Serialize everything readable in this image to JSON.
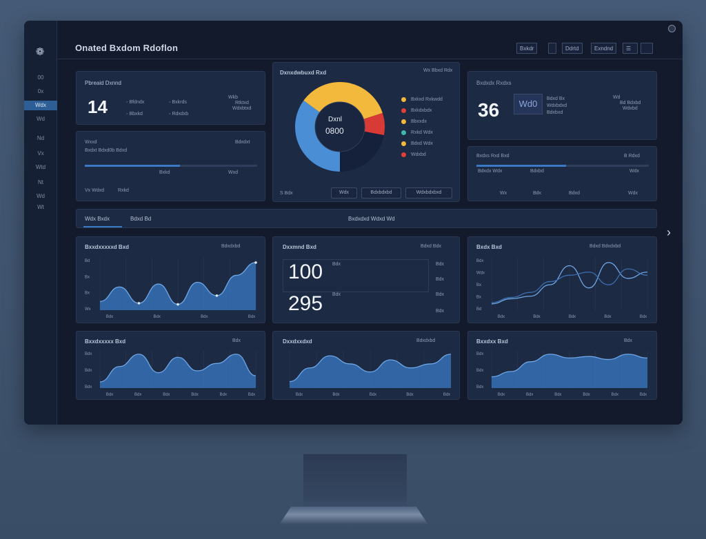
{
  "window": {
    "title": "Onated Bxdom Rdoflon"
  },
  "toolbar": {
    "buttons": [
      "Bxkdr",
      "Ddrtd",
      "Exndnd",
      "☰"
    ]
  },
  "sidebar": {
    "logo": "❁",
    "items": [
      "00",
      "0x",
      "Wdx",
      "Wd",
      "Nd",
      "Vx",
      "Wtd",
      "Nt",
      "Wd",
      "Wt"
    ]
  },
  "kpi_left": {
    "title": "Pbreaid Dxnnd",
    "value": "14",
    "rows": [
      {
        "a": "Bfdndx",
        "b": "Bxkrds"
      },
      {
        "a": "Bbxkd",
        "b": "Rdxdxb"
      }
    ],
    "right_labels": [
      "Wkb",
      "Rtktxd",
      "Wdxbtxd"
    ]
  },
  "progress_left": {
    "title": "Wxxd",
    "right": "Bdxdxt",
    "ticks": [
      "Bxdxt Bdxd0b Bdxd",
      "Bxkd",
      "Wxd"
    ],
    "bottom": [
      "Vx Wdxd",
      "Rxkd",
      "Bdx"
    ]
  },
  "donut": {
    "title": "Dxnxdwbuxd Rxd",
    "subtitle": "Wx Bbxd Rdx",
    "center_label": "Dxnl",
    "center_value": "0800",
    "legend": [
      "Bxkxd Rxkwdd",
      "Bxkdxbdx",
      "Bbxxdx",
      "Rxkd Wdx",
      "Bdxd Wdx",
      "Wdxbd"
    ],
    "legend_colors": [
      "#f2b93d",
      "#e0403a",
      "#f2b93d",
      "#3fb8b0",
      "#f2b93d",
      "#e0403a"
    ],
    "footer": [
      "S Bdx",
      "Wdx",
      "Bdxbdxbd",
      "Wdxbdxbxd"
    ],
    "chart_data": {
      "type": "pie",
      "categories": [
        "Blue",
        "Yellow",
        "Red",
        "Dark"
      ],
      "values": [
        35,
        35,
        8,
        22
      ]
    }
  },
  "kpi_right": {
    "title": "Bxdxdx Rxdxs",
    "value": "36",
    "tag": "Wd0",
    "lines": [
      "Bdxd Bx",
      "Wdxbdxd",
      "Bdxbxd"
    ],
    "right_labels": [
      "Wd",
      "Bd Bdxbd",
      "Wdxbd"
    ]
  },
  "progress_right": {
    "title": "Bxdxs Rxd Bxd",
    "right": "B Rdxd",
    "ticks": [
      "Bdxdx Wdx",
      "Bdxbd",
      "Wdx"
    ],
    "bottom": [
      "Wx",
      "Bdx",
      "Bdxd",
      "Wdx"
    ]
  },
  "tabs": {
    "items": [
      "Wdx Bxdx",
      "Bdxd Bd"
    ],
    "center": "Bxdxdxd Wdxd Wd"
  },
  "chart_mid_left": {
    "title": "Bxxdxxxxxd Bxd",
    "right": "Bdxdxbd",
    "y_ticks": [
      "Bd",
      "Bx",
      "Bx",
      "Wx"
    ],
    "x_ticks": [
      "Bdx",
      "Bdx",
      "Bdx",
      "Bdx"
    ],
    "chart_data": {
      "type": "area",
      "x": [
        0,
        1,
        2,
        3,
        4,
        5,
        6,
        7,
        8
      ],
      "values": [
        15,
        40,
        12,
        45,
        10,
        48,
        25,
        60,
        82
      ]
    }
  },
  "metrics_center": {
    "title": "Dxxmnd Bxd",
    "right": "Bdxd Bdx",
    "value1": "100",
    "value1_label": "Bdx",
    "value2": "295",
    "value2_label": "Bdx",
    "right_ticks": [
      "Bdx",
      "Bdx",
      "Bdx",
      "Bdx"
    ]
  },
  "chart_mid_right": {
    "title": "Bxdx Bxd",
    "right": "Bdxd Bdxdxbd",
    "y_ticks": [
      "Bdx",
      "Wdx",
      "Bx",
      "Bx",
      "Bd"
    ],
    "x_ticks": [
      "Bdx",
      "Bdx",
      "Bdx",
      "Bdx",
      "Bdx"
    ],
    "chart_data": {
      "type": "line",
      "x": [
        0,
        1,
        2,
        3,
        4,
        5,
        6,
        7,
        8
      ],
      "series": [
        {
          "values": [
            10,
            18,
            22,
            40,
            70,
            35,
            75,
            50,
            60
          ]
        },
        {
          "values": [
            12,
            20,
            28,
            45,
            55,
            60,
            40,
            65,
            55
          ]
        }
      ]
    }
  },
  "chart_bot_left": {
    "title": "Bxxdxxxxx Bxd",
    "right": "Bdx",
    "y_ticks": [
      "Bdx",
      "Bdx",
      "Bdx"
    ],
    "x_ticks": [
      "Bdx",
      "Bdx",
      "Bdx",
      "Bdx",
      "Bdx",
      "Bdx"
    ],
    "chart_data": {
      "type": "area",
      "x": [
        0,
        1,
        2,
        3,
        4,
        5,
        6,
        7,
        8
      ],
      "values": [
        10,
        35,
        55,
        25,
        50,
        28,
        40,
        55,
        20
      ]
    }
  },
  "chart_bot_center": {
    "title": "Dxxdxxdxd",
    "right": "Bdxdxbd",
    "x_ticks": [
      "Bdx",
      "Bdx",
      "Bdx",
      "Bdx",
      "Bdx"
    ],
    "chart_data": {
      "type": "area",
      "x": [
        0,
        1,
        2,
        3,
        4,
        5,
        6,
        7,
        8
      ],
      "values": [
        8,
        25,
        40,
        30,
        20,
        35,
        25,
        30,
        42
      ]
    }
  },
  "chart_bot_right": {
    "title": "Bxxdxx Bxd",
    "right": "Bdx",
    "y_ticks": [
      "Bdx",
      "Bdx",
      "Bdx"
    ],
    "x_ticks": [
      "Bdx",
      "Bdx",
      "Bdx",
      "Bdx",
      "Bdx",
      "Bdx"
    ],
    "chart_data": {
      "type": "area",
      "x": [
        0,
        1,
        2,
        3,
        4,
        5,
        6,
        7,
        8
      ],
      "values": [
        15,
        22,
        35,
        45,
        40,
        42,
        38,
        45,
        40
      ]
    }
  }
}
